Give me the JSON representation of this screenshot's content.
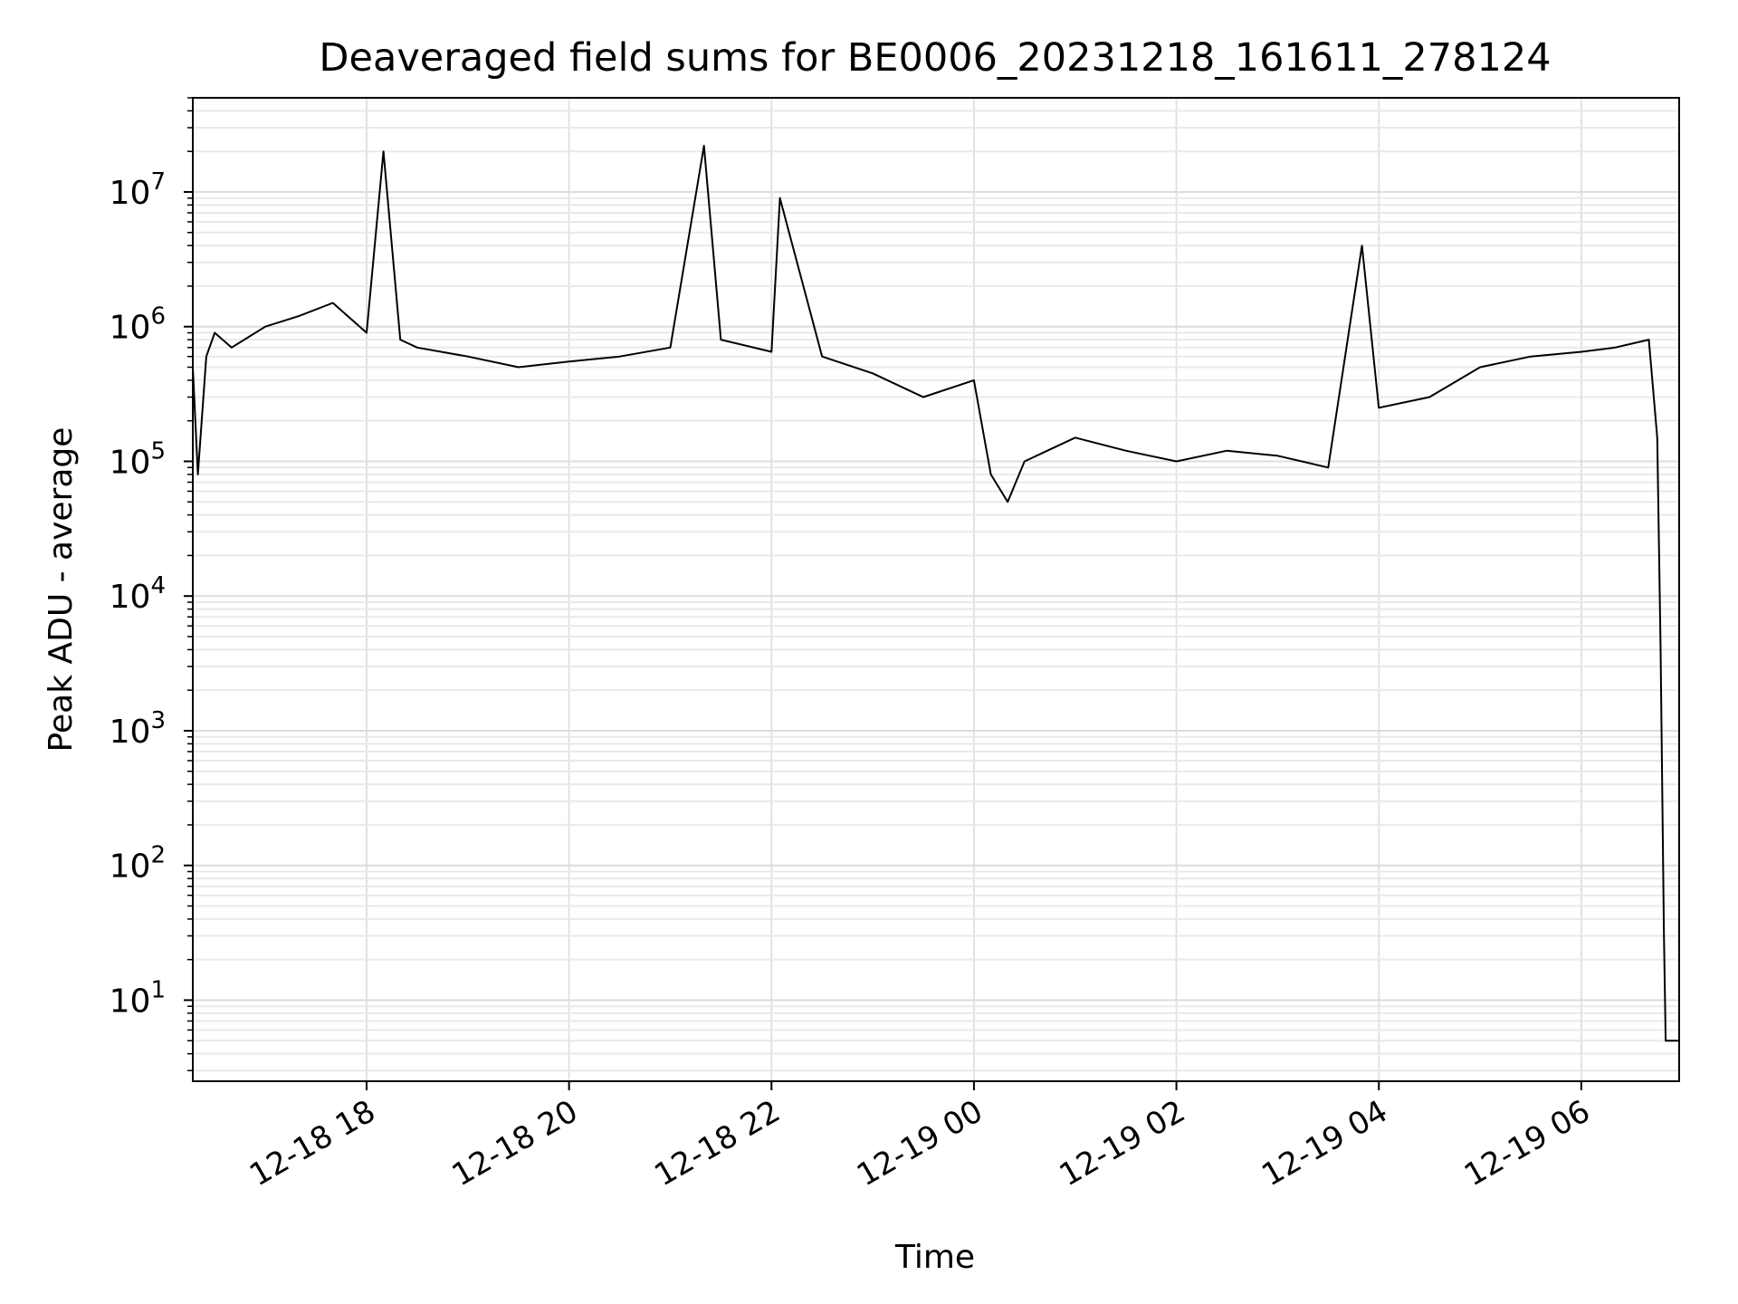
{
  "chart_data": {
    "type": "line",
    "title": "Deaveraged field sums for BE0006_20231218_161611_278124",
    "xlabel": "Time",
    "ylabel": "Peak ADU - average",
    "yscale": "log",
    "ylim": [
      2.5,
      50000000
    ],
    "xlim": [
      "12-18 16:17",
      "12-19 06:58"
    ],
    "grid": true,
    "line_color": "#000000",
    "x_ticks": [
      "12-18 18",
      "12-18 20",
      "12-18 22",
      "12-19 00",
      "12-19 02",
      "12-19 04",
      "12-19 06"
    ],
    "y_ticks": [
      {
        "base": "10",
        "exp": "1"
      },
      {
        "base": "10",
        "exp": "2"
      },
      {
        "base": "10",
        "exp": "3"
      },
      {
        "base": "10",
        "exp": "4"
      },
      {
        "base": "10",
        "exp": "5"
      },
      {
        "base": "10",
        "exp": "6"
      },
      {
        "base": "10",
        "exp": "7"
      }
    ],
    "series": [
      {
        "color": "#000000",
        "x": [
          "12-18 16:17",
          "12-18 16:20",
          "12-18 16:25",
          "12-18 16:30",
          "12-18 16:40",
          "12-18 17:00",
          "12-18 17:20",
          "12-18 17:40",
          "12-18 18:00",
          "12-18 18:10",
          "12-18 18:20",
          "12-18 18:30",
          "12-18 19:00",
          "12-18 19:30",
          "12-18 20:00",
          "12-18 20:30",
          "12-18 21:00",
          "12-18 21:20",
          "12-18 21:30",
          "12-18 22:00",
          "12-18 22:05",
          "12-18 22:30",
          "12-18 23:00",
          "12-18 23:30",
          "12-19 00:00",
          "12-19 00:10",
          "12-19 00:20",
          "12-19 00:30",
          "12-19 01:00",
          "12-19 01:30",
          "12-19 02:00",
          "12-19 02:30",
          "12-19 03:00",
          "12-19 03:30",
          "12-19 03:50",
          "12-19 04:00",
          "12-19 04:30",
          "12-19 05:00",
          "12-19 05:30",
          "12-19 06:00",
          "12-19 06:20",
          "12-19 06:40",
          "12-19 06:45",
          "12-19 06:47",
          "12-19 06:49",
          "12-19 06:50",
          "12-19 06:51",
          "12-19 06:58"
        ],
        "y": [
          500000,
          80000,
          600000,
          900000,
          700000,
          1000000,
          1200000,
          1500000,
          900000,
          20000000,
          800000,
          700000,
          600000,
          500000,
          550000,
          600000,
          700000,
          22000000,
          800000,
          650000,
          9000000,
          600000,
          450000,
          300000,
          400000,
          80000,
          50000,
          100000,
          150000,
          120000,
          100000,
          120000,
          110000,
          90000,
          4000000,
          250000,
          300000,
          500000,
          600000,
          650000,
          700000,
          800000,
          150000,
          4000,
          30,
          5,
          5,
          5
        ]
      }
    ]
  }
}
